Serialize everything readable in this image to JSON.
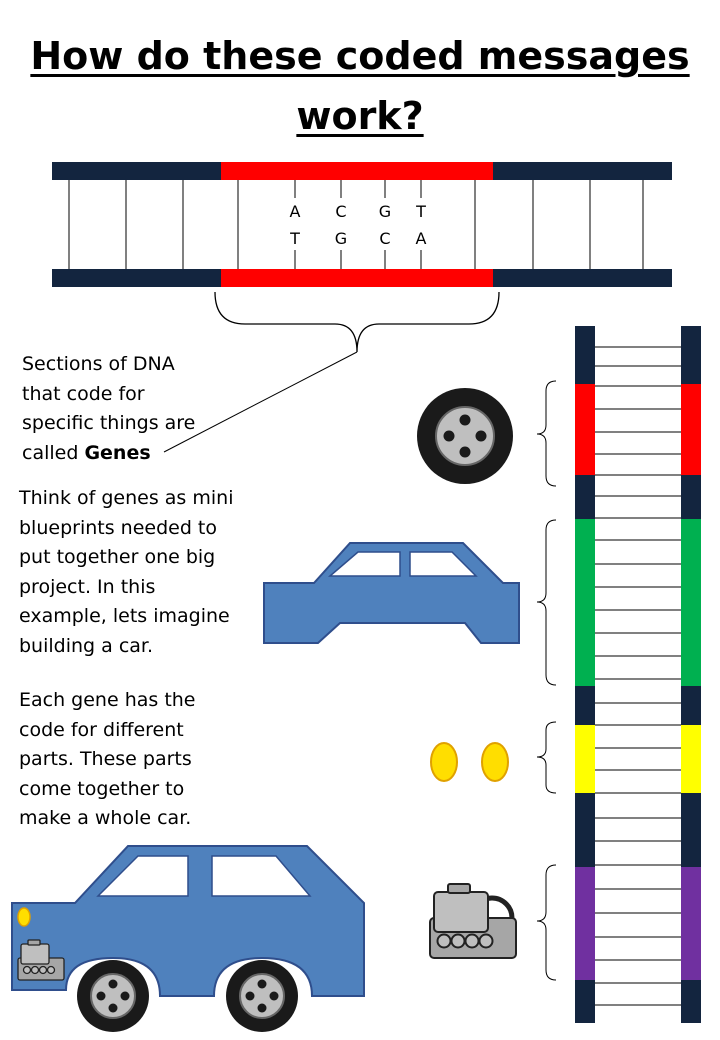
{
  "title": {
    "line1": "How do these coded messages",
    "line2": "work?"
  },
  "dna_top": {
    "bases_top": [
      "A",
      "C",
      "G",
      "T"
    ],
    "bases_bottom": [
      "T",
      "G",
      "C",
      "A"
    ]
  },
  "text": {
    "genes_lines": [
      "Sections of DNA",
      "that code for",
      "specific things are"
    ],
    "genes_last_prefix": "called ",
    "genes_term": "Genes",
    "blueprint_lines": [
      "Think of genes as mini",
      "blueprints needed to",
      "put together one big",
      "project. In this",
      "example, lets imagine",
      "building a car."
    ],
    "parts_lines": [
      "Each gene has the",
      "code for different",
      "parts. These parts",
      "come together to",
      "make a whole car."
    ]
  },
  "colors": {
    "backbone": "#13253f",
    "gene_red": "#ff0000",
    "gene_green": "#00b050",
    "gene_yellow": "#ffff00",
    "gene_purple": "#7030a0",
    "car_blue": "#4f81bd",
    "car_outline": "#2f4e8c",
    "headlight": "#ffde00"
  },
  "icons": [
    "wheel-icon",
    "car-body-icon",
    "headlights-icon",
    "engine-icon",
    "complete-car-icon"
  ]
}
